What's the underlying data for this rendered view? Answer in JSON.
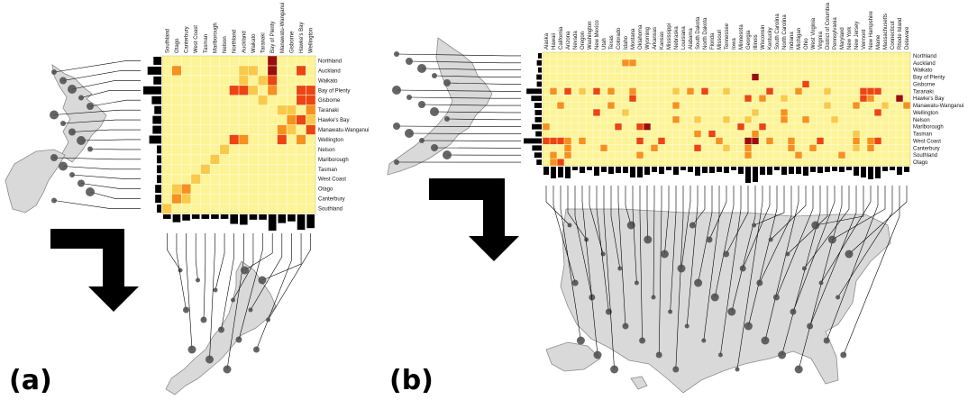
{
  "panel_labels": [
    "(a)",
    "(b)"
  ],
  "colors": {
    "empty": "#fdf497",
    "cell_low": "#f9c94a",
    "cell_mid": "#f6901f",
    "cell_high": "#ec4413",
    "cell_max": "#9b0d0d",
    "map_land": "#d9d9d9",
    "map_edge": "#8c8c8c",
    "node": "#4a4a4a"
  },
  "chart_data": [
    {
      "type": "heatmap",
      "panel": "(a)",
      "rows": [
        "Northland",
        "Auckland",
        "Waikato",
        "Bay of Plenty",
        "Gisborne",
        "Taranaki",
        "Hawke's Bay",
        "Manawatu-Wanganui",
        "Wellington",
        "Nelson",
        "Marlborough",
        "Tasman",
        "West Coast",
        "Otago",
        "Canterbury",
        "Southland"
      ],
      "columns": [
        "Southland",
        "Otago",
        "Canterbury",
        "West Coast",
        "Tasman",
        "Marlborough",
        "Nelson",
        "Northland",
        "Auckland",
        "Waikato",
        "Taranaki",
        "Bay of Plenty",
        "Manawatu-Wanganui",
        "Gisborne",
        "Hawke's Bay",
        "Wellington"
      ],
      "cells": [
        [
          1,
          1,
          1
        ],
        [
          1,
          8,
          0
        ],
        [
          1,
          9,
          0
        ],
        [
          1,
          11,
          4
        ],
        [
          1,
          14,
          2
        ],
        [
          0,
          11,
          4
        ],
        [
          2,
          8,
          0
        ],
        [
          2,
          10,
          0
        ],
        [
          2,
          11,
          2
        ],
        [
          3,
          7,
          3
        ],
        [
          3,
          8,
          3
        ],
        [
          3,
          9,
          0
        ],
        [
          3,
          11,
          1
        ],
        [
          3,
          14,
          2
        ],
        [
          3,
          15,
          2
        ],
        [
          4,
          10,
          0
        ],
        [
          4,
          14,
          2
        ],
        [
          4,
          15,
          2
        ],
        [
          5,
          12,
          0
        ],
        [
          5,
          13,
          0
        ],
        [
          5,
          15,
          1
        ],
        [
          6,
          13,
          1
        ],
        [
          6,
          14,
          2
        ],
        [
          6,
          15,
          0
        ],
        [
          7,
          12,
          1
        ],
        [
          7,
          13,
          0
        ],
        [
          7,
          15,
          2
        ],
        [
          8,
          7,
          2
        ],
        [
          8,
          8,
          1
        ],
        [
          8,
          12,
          2
        ],
        [
          8,
          14,
          1
        ],
        [
          9,
          6,
          0
        ],
        [
          10,
          5,
          0
        ],
        [
          11,
          4,
          0
        ],
        [
          12,
          3,
          0
        ],
        [
          13,
          1,
          0
        ],
        [
          13,
          2,
          1
        ],
        [
          14,
          1,
          1
        ],
        [
          14,
          2,
          0
        ],
        [
          15,
          0,
          0
        ]
      ],
      "legend": "none"
    },
    {
      "type": "heatmap",
      "panel": "(b)",
      "rows": [
        "Northland",
        "Auckland",
        "Waikato",
        "Bay of Plenty",
        "Gisborne",
        "Taranaki",
        "Hawke's Bay",
        "Manawatu-Wanganui",
        "Wellington",
        "Nelson",
        "Marlborough",
        "Tasman",
        "West Coast",
        "Canterbury",
        "Southland",
        "Otago"
      ],
      "columns": [
        "Alaska",
        "Hawaii",
        "California",
        "Arizona",
        "Nevada",
        "Oregon",
        "Washington",
        "New Mexico",
        "Utah",
        "Texas",
        "Colorado",
        "Idaho",
        "Montana",
        "Oklahoma",
        "Wyoming",
        "Arkansas",
        "Kansas",
        "Mississippi",
        "Nebraska",
        "Louisiana",
        "Alabama",
        "South Dakota",
        "North Dakota",
        "Florida",
        "Missouri",
        "Tennessee",
        "Iowa",
        "Minnesota",
        "Georgia",
        "Illinois",
        "Wisconsin",
        "Kentucky",
        "South Carolina",
        "North Carolina",
        "Indiana",
        "Michigan",
        "Ohio",
        "West Virginia",
        "Virginia",
        "District of Columbia",
        "Pennsylvania",
        "Maryland",
        "New York",
        "New Jersey",
        "Vermont",
        "New Hampshire",
        "Maine",
        "Massachusetts",
        "Connecticut",
        "Rhode Island",
        "Delaware"
      ],
      "cells": [
        [
          1,
          11,
          1
        ],
        [
          1,
          12,
          1
        ],
        [
          3,
          29,
          4
        ],
        [
          4,
          36,
          3
        ],
        [
          5,
          1,
          1
        ],
        [
          5,
          3,
          2
        ],
        [
          5,
          5,
          0
        ],
        [
          5,
          7,
          2
        ],
        [
          5,
          9,
          1
        ],
        [
          5,
          12,
          1
        ],
        [
          5,
          18,
          0
        ],
        [
          5,
          20,
          1
        ],
        [
          5,
          22,
          2
        ],
        [
          5,
          25,
          0
        ],
        [
          5,
          31,
          2
        ],
        [
          5,
          35,
          1
        ],
        [
          5,
          39,
          0
        ],
        [
          5,
          44,
          3
        ],
        [
          5,
          45,
          3
        ],
        [
          5,
          46,
          2
        ],
        [
          6,
          12,
          3
        ],
        [
          6,
          28,
          3
        ],
        [
          6,
          30,
          1
        ],
        [
          6,
          33,
          0
        ],
        [
          6,
          44,
          3
        ],
        [
          6,
          45,
          1
        ],
        [
          6,
          49,
          4
        ],
        [
          7,
          2,
          1
        ],
        [
          7,
          9,
          1
        ],
        [
          7,
          18,
          1
        ],
        [
          7,
          39,
          0
        ],
        [
          7,
          43,
          1
        ],
        [
          7,
          47,
          0
        ],
        [
          7,
          50,
          1
        ],
        [
          8,
          7,
          2
        ],
        [
          8,
          11,
          0
        ],
        [
          8,
          29,
          0
        ],
        [
          8,
          33,
          1
        ],
        [
          8,
          46,
          2
        ],
        [
          9,
          18,
          1
        ],
        [
          9,
          21,
          0
        ],
        [
          9,
          25,
          0
        ],
        [
          9,
          28,
          0
        ],
        [
          9,
          33,
          1
        ],
        [
          9,
          36,
          1
        ],
        [
          9,
          40,
          0
        ],
        [
          10,
          0,
          1
        ],
        [
          10,
          10,
          2
        ],
        [
          10,
          13,
          2
        ],
        [
          10,
          14,
          4
        ],
        [
          10,
          27,
          3
        ],
        [
          10,
          30,
          2
        ],
        [
          11,
          21,
          1
        ],
        [
          11,
          23,
          2
        ],
        [
          11,
          29,
          1
        ],
        [
          11,
          43,
          0
        ],
        [
          12,
          0,
          2
        ],
        [
          12,
          1,
          2
        ],
        [
          12,
          2,
          2
        ],
        [
          12,
          3,
          1
        ],
        [
          12,
          5,
          1
        ],
        [
          12,
          13,
          2
        ],
        [
          12,
          16,
          3
        ],
        [
          12,
          24,
          1
        ],
        [
          12,
          28,
          4
        ],
        [
          12,
          29,
          4
        ],
        [
          12,
          31,
          1
        ],
        [
          12,
          34,
          1
        ],
        [
          12,
          38,
          2
        ],
        [
          12,
          43,
          1
        ],
        [
          12,
          45,
          1
        ],
        [
          12,
          46,
          2
        ],
        [
          13,
          3,
          1
        ],
        [
          13,
          8,
          1
        ],
        [
          13,
          15,
          1
        ],
        [
          13,
          21,
          2
        ],
        [
          13,
          25,
          0
        ],
        [
          13,
          28,
          1
        ],
        [
          13,
          34,
          1
        ],
        [
          13,
          37,
          1
        ],
        [
          13,
          43,
          0
        ],
        [
          13,
          45,
          1
        ],
        [
          14,
          1,
          1
        ],
        [
          14,
          3,
          1
        ],
        [
          14,
          13,
          1
        ],
        [
          14,
          28,
          1
        ],
        [
          14,
          35,
          1
        ],
        [
          14,
          41,
          1
        ],
        [
          15,
          1,
          1
        ],
        [
          15,
          2,
          2
        ]
      ],
      "legend": "none"
    }
  ]
}
